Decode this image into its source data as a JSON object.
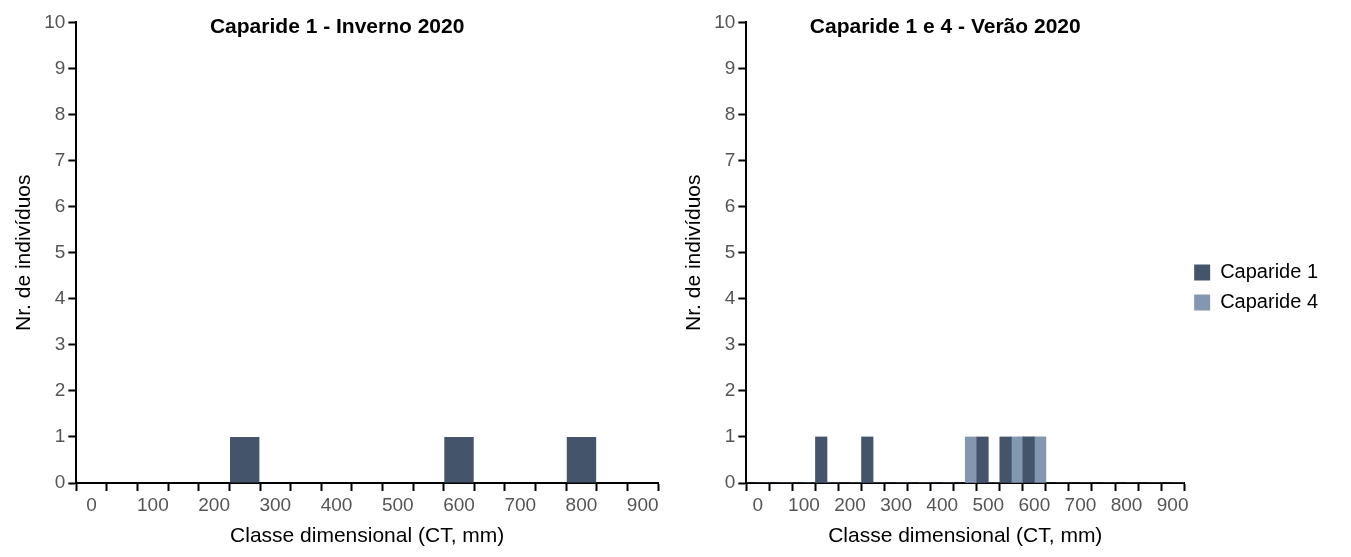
{
  "chart_data": [
    {
      "type": "bar",
      "title": "Caparide 1 - Inverno 2020",
      "xlabel": "Classe dimensional (CT, mm)",
      "ylabel": "Nr. de indivíduos",
      "categories": [
        "0",
        null,
        "100",
        null,
        "200",
        null,
        "300",
        null,
        "400",
        null,
        "500",
        null,
        "600",
        null,
        "700",
        null,
        "800",
        null,
        "900"
      ],
      "series": [
        {
          "color": "#44546a",
          "values": [
            0,
            0,
            0,
            0,
            0,
            1,
            0,
            0,
            0,
            0,
            0,
            0,
            1,
            0,
            0,
            0,
            1,
            0,
            0
          ]
        }
      ],
      "ylim": [
        0,
        10
      ],
      "yticks": [
        0,
        1,
        2,
        3,
        4,
        5,
        6,
        7,
        8,
        9,
        10
      ],
      "grid": false,
      "legend": false
    },
    {
      "type": "bar",
      "title": "Caparide 1 e 4 - Verão 2020",
      "xlabel": "Classe dimensional (CT, mm)",
      "ylabel": "Nr. de indivíduos",
      "categories": [
        "0",
        null,
        "100",
        null,
        "200",
        null,
        "300",
        null,
        "400",
        null,
        "500",
        null,
        "600",
        null,
        "700",
        null,
        "800",
        null,
        "900"
      ],
      "series": [
        {
          "name": "Caparide 1",
          "color": "#44546a",
          "values": [
            0,
            0,
            0,
            1,
            0,
            1,
            0,
            0,
            0,
            0,
            1,
            1,
            1,
            0,
            0,
            0,
            0,
            0,
            0
          ]
        },
        {
          "name": "Caparide 4",
          "color": "#8497b0",
          "values": [
            0,
            0,
            0,
            0,
            0,
            0,
            0,
            0,
            0,
            1,
            0,
            1,
            1,
            0,
            0,
            0,
            0,
            0,
            0
          ]
        }
      ],
      "ylim": [
        0,
        10
      ],
      "yticks": [
        0,
        1,
        2,
        3,
        4,
        5,
        6,
        7,
        8,
        9,
        10
      ],
      "grid": false,
      "legend": "right"
    }
  ]
}
